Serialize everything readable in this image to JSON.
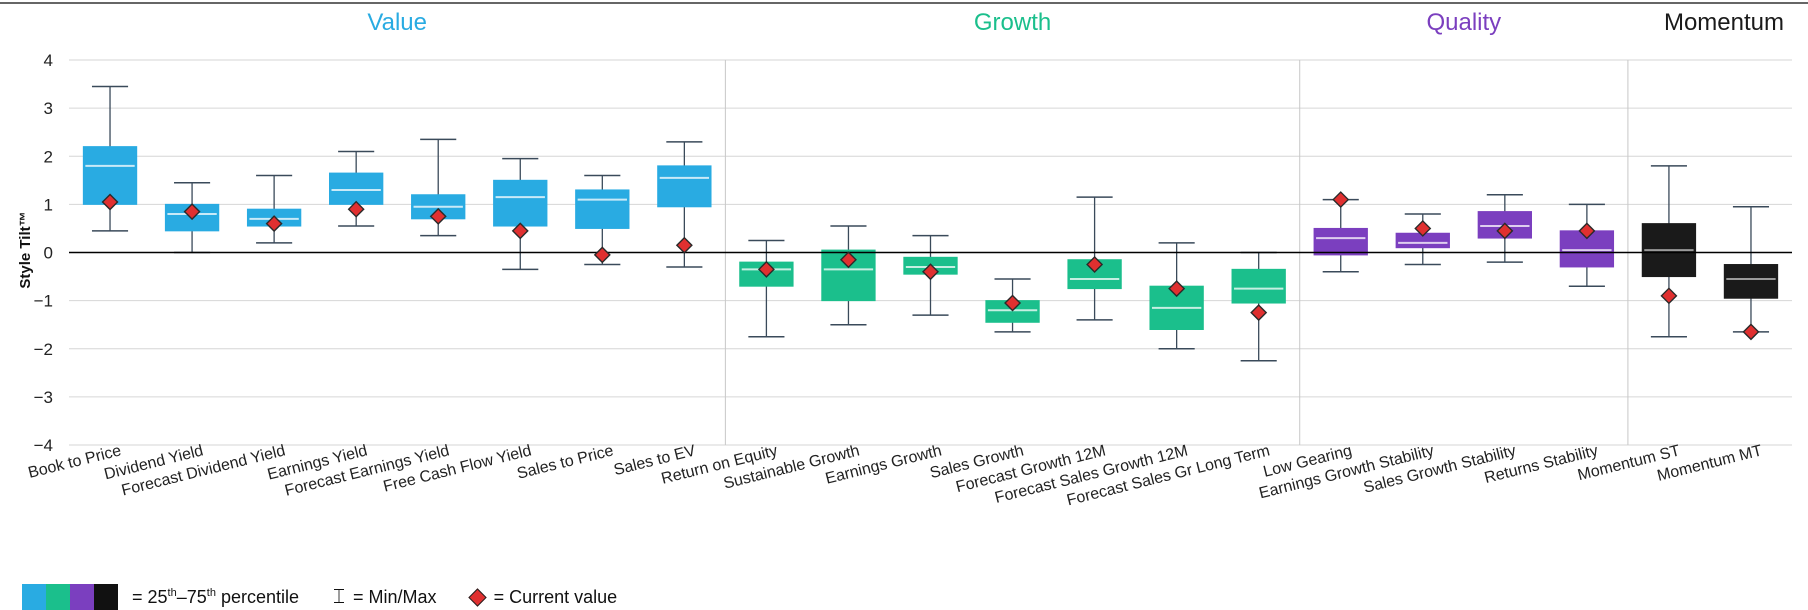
{
  "chart_data": {
    "type": "box",
    "ylabel": "Style Tilt™",
    "ylim": [
      -4,
      4
    ],
    "yticks": [
      4,
      3,
      2,
      1,
      0,
      -1,
      -2,
      -3,
      -4
    ],
    "yticklabels": [
      "4",
      "3",
      "2",
      "1",
      "0",
      "−1",
      "−2",
      "−3",
      "−4"
    ],
    "grid": true,
    "groups": [
      {
        "name": "Value",
        "color": "#29abe2",
        "count": 8
      },
      {
        "name": "Growth",
        "color": "#1bbf8c",
        "count": 7
      },
      {
        "name": "Quality",
        "color": "#7b3fbf",
        "count": 4
      },
      {
        "name": "Momentum",
        "color": "#1a1a1a",
        "count": 2
      }
    ],
    "categories": [
      "Book to Price",
      "Dividend Yield",
      "Forecast Dividend Yield",
      "Earnings Yield",
      "Forecast Earnings Yield",
      "Free Cash Flow Yield",
      "Sales to Price",
      "Sales to EV",
      "Return on Equity",
      "Sustainable Growth",
      "Earnings Growth",
      "Sales Growth",
      "Forecast Growth 12M",
      "Forecast Sales Growth 12M",
      "Forecast Sales Gr Long Term",
      "Low Gearing",
      "Earnings Growth Stability",
      "Sales Growth Stability",
      "Returns Stability",
      "Momentum ST",
      "Momentum MT"
    ],
    "series": [
      {
        "group": 0,
        "min": 0.45,
        "q1": 1.0,
        "median": 1.8,
        "q3": 2.2,
        "max": 3.45,
        "current": 1.05
      },
      {
        "group": 0,
        "min": 0.0,
        "q1": 0.45,
        "median": 0.8,
        "q3": 1.0,
        "max": 1.45,
        "current": 0.85
      },
      {
        "group": 0,
        "min": 0.2,
        "q1": 0.55,
        "median": 0.7,
        "q3": 0.9,
        "max": 1.6,
        "current": 0.6
      },
      {
        "group": 0,
        "min": 0.55,
        "q1": 1.0,
        "median": 1.3,
        "q3": 1.65,
        "max": 2.1,
        "current": 0.9
      },
      {
        "group": 0,
        "min": 0.35,
        "q1": 0.7,
        "median": 0.95,
        "q3": 1.2,
        "max": 2.35,
        "current": 0.75
      },
      {
        "group": 0,
        "min": -0.35,
        "q1": 0.55,
        "median": 1.15,
        "q3": 1.5,
        "max": 1.95,
        "current": 0.45
      },
      {
        "group": 0,
        "min": -0.25,
        "q1": 0.5,
        "median": 1.1,
        "q3": 1.3,
        "max": 1.6,
        "current": -0.05
      },
      {
        "group": 0,
        "min": -0.3,
        "q1": 0.95,
        "median": 1.55,
        "q3": 1.8,
        "max": 2.3,
        "current": 0.15
      },
      {
        "group": 1,
        "min": -1.75,
        "q1": -0.7,
        "median": -0.35,
        "q3": -0.2,
        "max": 0.25,
        "current": -0.35
      },
      {
        "group": 1,
        "min": -1.5,
        "q1": -1.0,
        "median": -0.35,
        "q3": 0.05,
        "max": 0.55,
        "current": -0.15
      },
      {
        "group": 1,
        "min": -1.3,
        "q1": -0.45,
        "median": -0.3,
        "q3": -0.1,
        "max": 0.35,
        "current": -0.4
      },
      {
        "group": 1,
        "min": -1.65,
        "q1": -1.45,
        "median": -1.2,
        "q3": -1.0,
        "max": -0.55,
        "current": -1.05
      },
      {
        "group": 1,
        "min": -1.4,
        "q1": -0.75,
        "median": -0.55,
        "q3": -0.15,
        "max": 1.15,
        "current": -0.25
      },
      {
        "group": 1,
        "min": -2.0,
        "q1": -1.6,
        "median": -1.15,
        "q3": -0.7,
        "max": 0.2,
        "current": -0.75
      },
      {
        "group": 1,
        "min": -2.25,
        "q1": -1.05,
        "median": -0.75,
        "q3": -0.35,
        "max": 0.0,
        "current": -1.25
      },
      {
        "group": 2,
        "min": -0.4,
        "q1": -0.05,
        "median": 0.3,
        "q3": 0.5,
        "max": 1.1,
        "current": 1.1
      },
      {
        "group": 2,
        "min": -0.25,
        "q1": 0.1,
        "median": 0.2,
        "q3": 0.4,
        "max": 0.8,
        "current": 0.5
      },
      {
        "group": 2,
        "min": -0.2,
        "q1": 0.3,
        "median": 0.55,
        "q3": 0.85,
        "max": 1.2,
        "current": 0.45
      },
      {
        "group": 2,
        "min": -0.7,
        "q1": -0.3,
        "median": 0.05,
        "q3": 0.45,
        "max": 1.0,
        "current": 0.45
      },
      {
        "group": 3,
        "min": -1.75,
        "q1": -0.5,
        "median": 0.05,
        "q3": 0.6,
        "max": 1.8,
        "current": -0.9
      },
      {
        "group": 3,
        "min": -1.65,
        "q1": -0.95,
        "median": -0.55,
        "q3": -0.25,
        "max": 0.95,
        "current": -1.65
      }
    ]
  },
  "legend": {
    "percentile_text": "= 25",
    "percentile_sup1": "th",
    "percentile_mid": "–75",
    "percentile_sup2": "th",
    "percentile_tail": " percentile",
    "minmax_glyph": "⌶",
    "minmax_text": "= Min/Max",
    "current_text": "= Current value"
  }
}
